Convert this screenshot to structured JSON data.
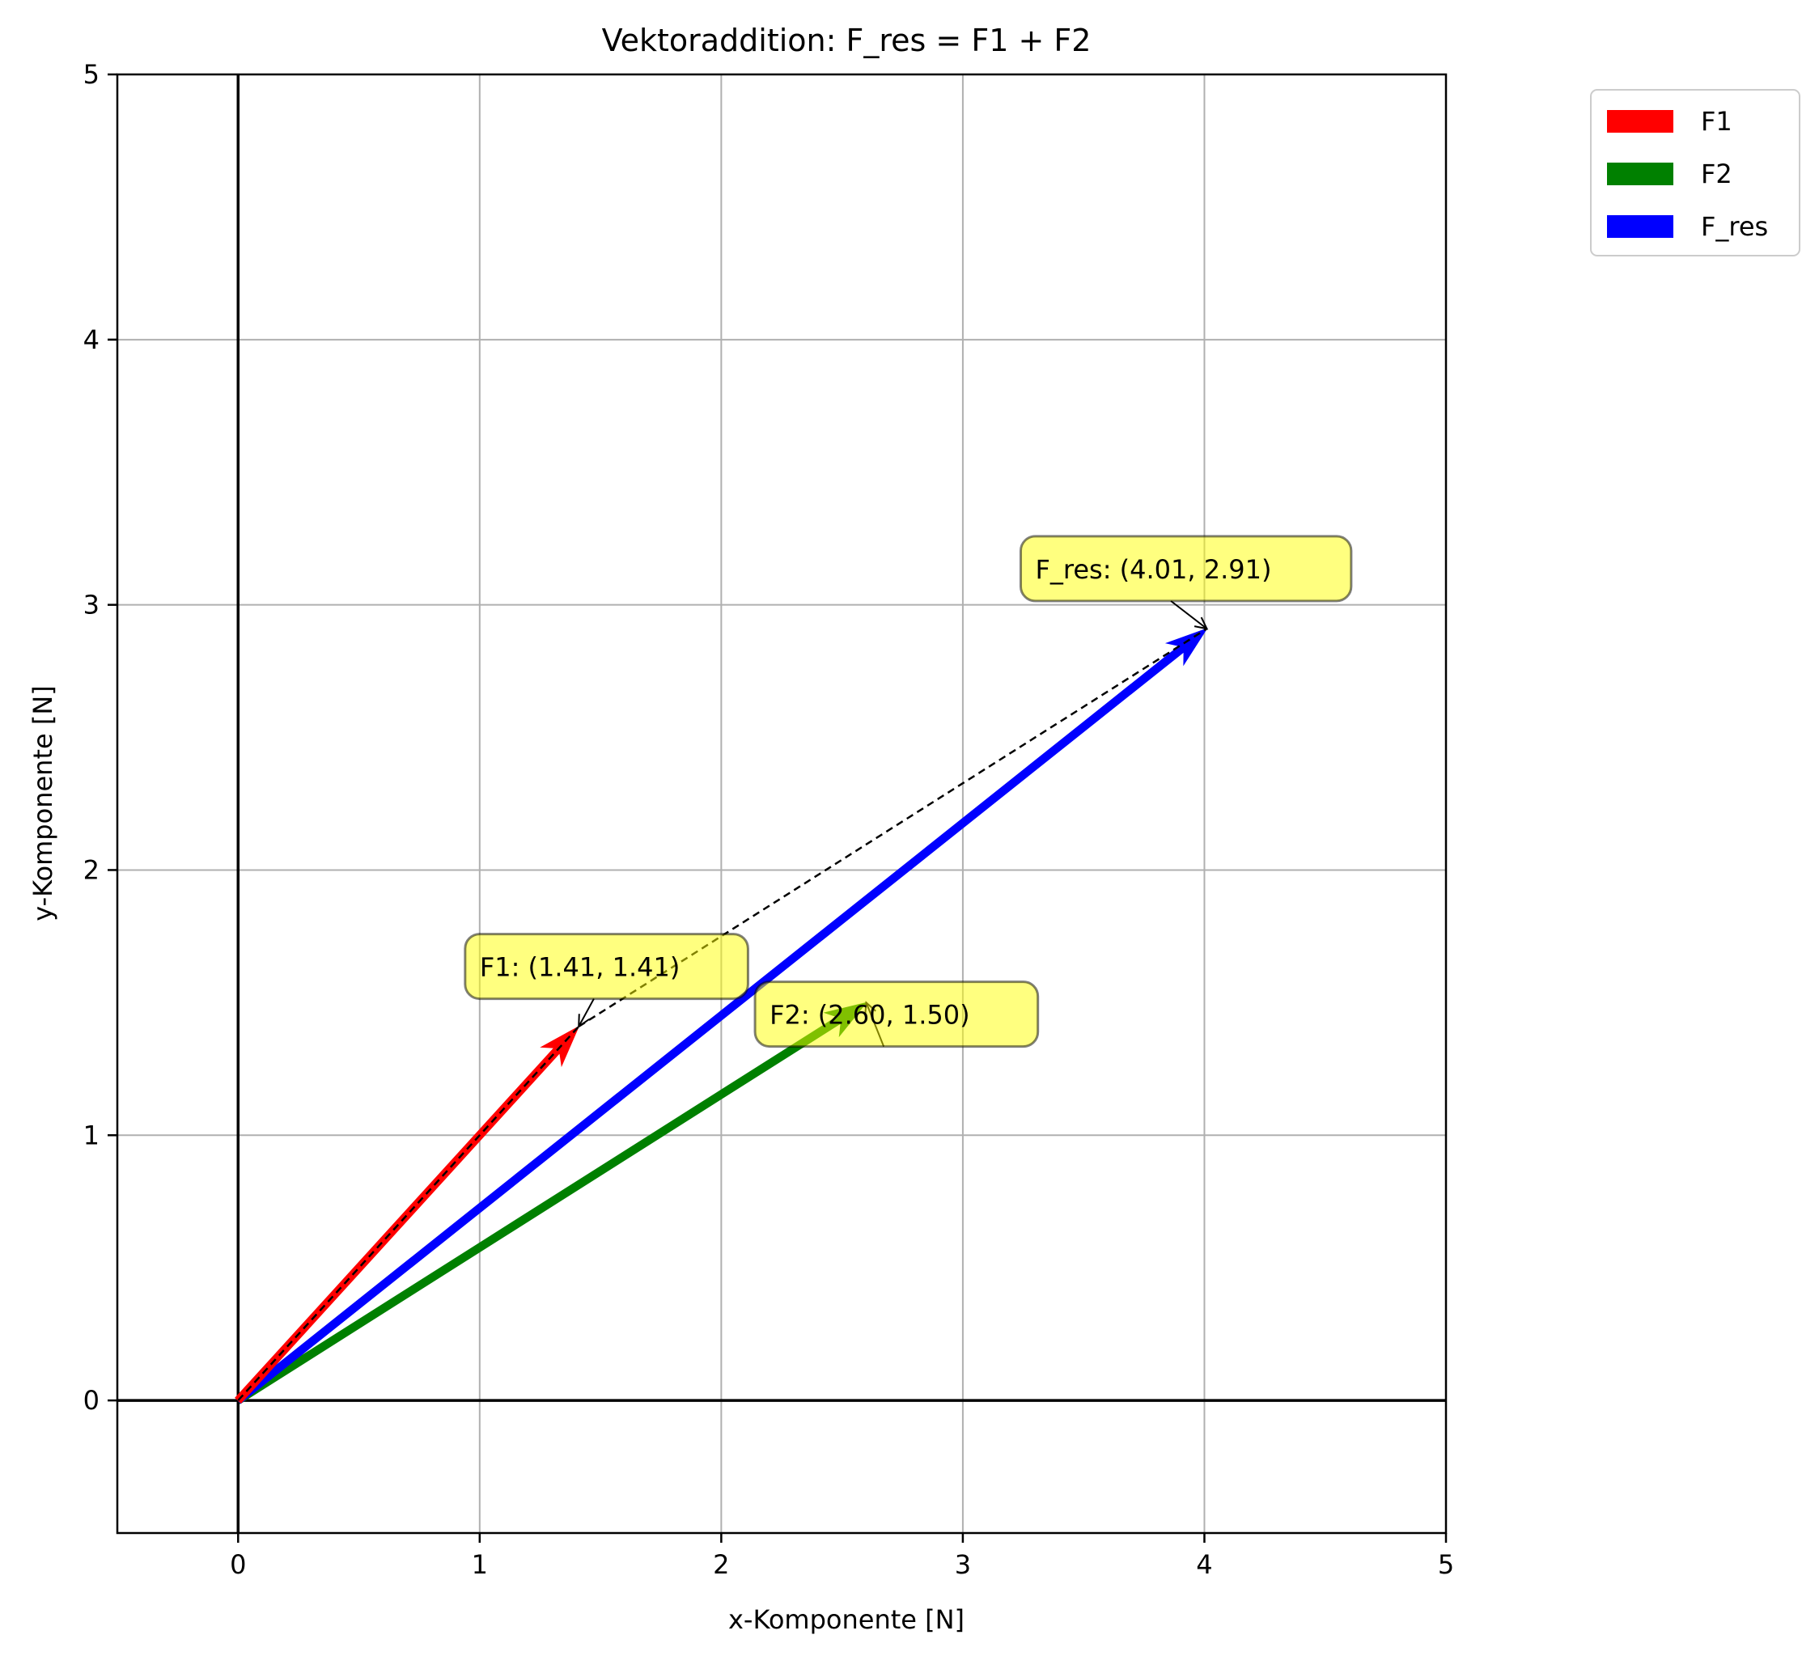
{
  "chart_data": {
    "type": "vector",
    "title": "Vektoraddition: F_res = F1 + F2",
    "xlabel": "x-Komponente [N]",
    "ylabel": "y-Komponente [N]",
    "xlim": [
      -0.5,
      5
    ],
    "ylim": [
      -0.5,
      5
    ],
    "xticks": [
      "0",
      "1",
      "2",
      "3",
      "4",
      "5"
    ],
    "yticks": [
      "0",
      "1",
      "2",
      "3",
      "4",
      "5"
    ],
    "grid": true,
    "legend_position": "outside upper right",
    "vectors": [
      {
        "name": "F1",
        "color": "#ff0000",
        "x0": 0,
        "y0": 0,
        "x1": 1.41,
        "y1": 1.41
      },
      {
        "name": "F2",
        "color": "#008000",
        "x0": 0,
        "y0": 0,
        "x1": 2.6,
        "y1": 1.5
      },
      {
        "name": "F_res",
        "color": "#0000ff",
        "x0": 0,
        "y0": 0,
        "x1": 4.01,
        "y1": 2.91
      }
    ],
    "construction_lines": [
      {
        "x0": 0,
        "y0": 0,
        "x1": 1.41,
        "y1": 1.41,
        "style": "dashed"
      },
      {
        "x0": 1.41,
        "y0": 1.41,
        "x1": 4.01,
        "y1": 2.91,
        "style": "dashed"
      }
    ],
    "annotations": [
      {
        "text": "F1: (1.41, 1.41)",
        "x": 1.41,
        "y": 1.41,
        "text_x": 1.0,
        "text_y": 1.6
      },
      {
        "text": "F2: (2.60, 1.50)",
        "x": 2.6,
        "y": 1.5,
        "text_x": 2.2,
        "text_y": 1.42
      },
      {
        "text": "F_res: (4.01, 2.91)",
        "x": 4.01,
        "y": 2.91,
        "text_x": 3.3,
        "text_y": 3.1
      }
    ]
  }
}
